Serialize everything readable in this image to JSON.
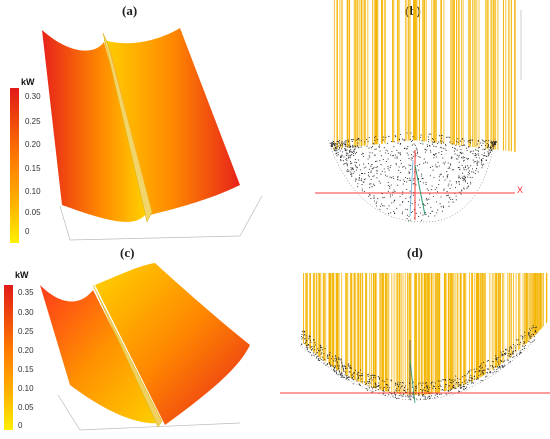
{
  "panels": {
    "a": {
      "label": "(a)",
      "unit": "kW",
      "ticks": [
        "0.30",
        "0.25",
        "0.20",
        "0.15",
        "0.10",
        "0.05",
        "0"
      ]
    },
    "b": {
      "label": "(b)",
      "axis_label": "X"
    },
    "c": {
      "label": "(c)",
      "unit": "kW",
      "ticks": [
        "0.35",
        "0.30",
        "0.25",
        "0.20",
        "0.15",
        "0.10",
        "0.05",
        "0"
      ]
    },
    "d": {
      "label": "(d)"
    }
  },
  "colors": {
    "scale_top": "#e8221a",
    "scale_mid": "#ff9f00",
    "scale_bottom": "#ffe800",
    "ray": "#f4b400",
    "axis": "#ff3b3b"
  }
}
